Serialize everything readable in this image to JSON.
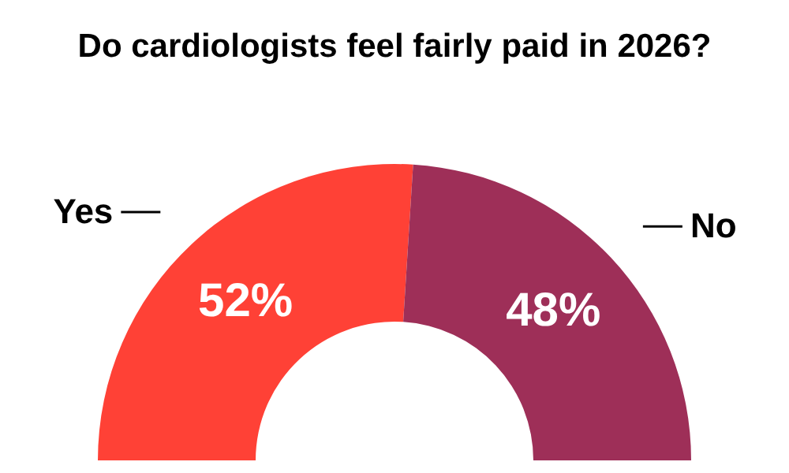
{
  "chart_data": {
    "type": "donut",
    "title": "Do cardiologists feel fairly paid in 2026?",
    "categories": [
      "Yes",
      "No"
    ],
    "values": [
      52,
      48
    ],
    "value_labels": [
      "52%",
      "48%"
    ],
    "colors": [
      "#ff4136",
      "#9e2f58"
    ]
  }
}
